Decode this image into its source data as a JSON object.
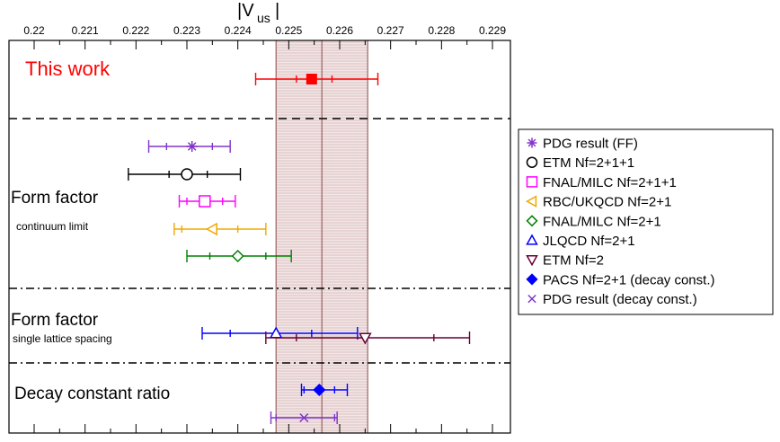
{
  "chart_data": {
    "type": "scatter",
    "axis_title": {
      "main": "|V",
      "sub": "us",
      "close": "|"
    },
    "x_ticks": [
      "0.22",
      "0.221",
      "0.222",
      "0.223",
      "0.224",
      "0.225",
      "0.226",
      "0.227",
      "0.228",
      "0.229"
    ],
    "xlim": [
      0.2195,
      0.2301
    ],
    "band": {
      "lower": 0.22475,
      "center": 0.22565,
      "upper": 0.22655,
      "color": "#8b4a4a"
    },
    "sections": [
      {
        "label": "This work",
        "sublabel": "",
        "label_color": "#ff0000"
      },
      {
        "label": "Form factor",
        "sublabel": "continuum limit",
        "label_color": "#000000"
      },
      {
        "label": "Form factor",
        "sublabel": "single lattice spacing",
        "label_color": "#000000"
      },
      {
        "label": "Decay constant ratio",
        "sublabel": "",
        "label_color": "#000000"
      }
    ],
    "points": [
      {
        "value": 0.22545,
        "inner": [
          0.22515,
          0.22585
        ],
        "outer": [
          0.22435,
          0.22675
        ],
        "marker": "filled-square",
        "color": "#ff0000"
      },
      {
        "value": 0.2231,
        "inner": [
          0.2226,
          0.2235
        ],
        "outer": [
          0.22225,
          0.22385
        ],
        "marker": "star",
        "color": "#8033cc"
      },
      {
        "value": 0.223,
        "inner": [
          0.22265,
          0.2234
        ],
        "outer": [
          0.22185,
          0.22405
        ],
        "marker": "circle",
        "color": "#000000"
      },
      {
        "value": 0.22335,
        "inner": [
          0.223,
          0.2237
        ],
        "outer": [
          0.22285,
          0.22395
        ],
        "marker": "square",
        "color": "#ff00ff"
      },
      {
        "value": 0.2235,
        "inner": [
          0.2229,
          0.224
        ],
        "outer": [
          0.22275,
          0.22455
        ],
        "marker": "triangle-left",
        "color": "#f0a800"
      },
      {
        "value": 0.224,
        "inner": [
          0.22345,
          0.22455
        ],
        "outer": [
          0.223,
          0.22505
        ],
        "marker": "diamond",
        "color": "#008000"
      },
      {
        "value": 0.22475,
        "inner": [
          0.22385,
          0.22545
        ],
        "outer": [
          0.2233,
          0.22635
        ],
        "marker": "triangle-up",
        "color": "#0000ff"
      },
      {
        "value": 0.2265,
        "inner": [
          0.22515,
          0.22785
        ],
        "outer": [
          0.22455,
          0.22855
        ],
        "marker": "triangle-down",
        "color": "#660033"
      },
      {
        "value": 0.2256,
        "inner": [
          0.2253,
          0.2259
        ],
        "outer": [
          0.22525,
          0.22615
        ],
        "marker": "filled-diamond",
        "color": "#0000ff"
      },
      {
        "value": 0.2253,
        "inner": [
          0.22475,
          0.2259
        ],
        "outer": [
          0.22465,
          0.22595
        ],
        "marker": "cross",
        "color": "#8033cc"
      }
    ],
    "legend": {
      "position": "right",
      "entries": [
        {
          "marker": "star",
          "color": "#8033cc",
          "label": "PDG result (FF)"
        },
        {
          "marker": "circle",
          "color": "#000000",
          "label": "ETM Nf=2+1+1"
        },
        {
          "marker": "square",
          "color": "#ff00ff",
          "label": "FNAL/MILC Nf=2+1+1"
        },
        {
          "marker": "triangle-left",
          "color": "#f0a800",
          "label": "RBC/UKQCD Nf=2+1"
        },
        {
          "marker": "diamond",
          "color": "#008000",
          "label": "FNAL/MILC Nf=2+1"
        },
        {
          "marker": "triangle-up",
          "color": "#0000ff",
          "label": "JLQCD Nf=2+1"
        },
        {
          "marker": "triangle-down",
          "color": "#660033",
          "label": "ETM Nf=2"
        },
        {
          "marker": "filled-diamond",
          "color": "#0000ff",
          "label": "PACS Nf=2+1 (decay const.)"
        },
        {
          "marker": "cross",
          "color": "#8033cc",
          "label": "PDG result (decay const.)"
        }
      ]
    }
  }
}
